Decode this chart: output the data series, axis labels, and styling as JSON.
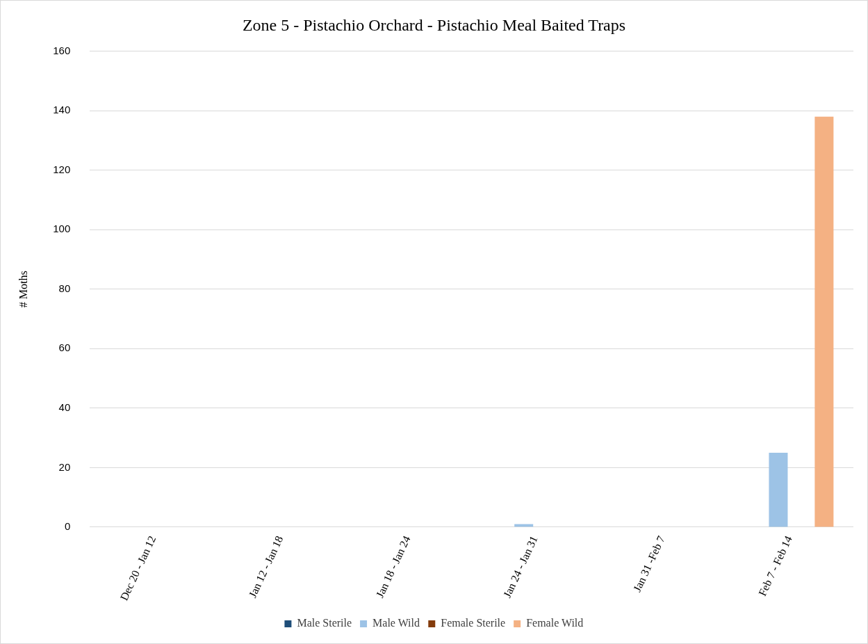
{
  "chart_data": {
    "type": "bar",
    "title": "Zone 5 - Pistachio Orchard - Pistachio Meal Baited Traps",
    "ylabel": "# Moths",
    "categories": [
      "Dec 20 - Jan 12",
      "Jan 12 - Jan 18",
      "Jan 18 - Jan 24",
      "Jan 24 - Jan 31",
      "Jan 31 -Feb 7",
      "Feb 7 - Feb 14"
    ],
    "series": [
      {
        "name": "Male Sterile",
        "color": "#1f4e79",
        "values": [
          0,
          0,
          0,
          0,
          0,
          0
        ]
      },
      {
        "name": "Male Wild",
        "color": "#9dc3e6",
        "values": [
          0,
          0,
          0,
          1,
          0,
          25
        ]
      },
      {
        "name": "Female Sterile",
        "color": "#843c0c",
        "values": [
          0,
          0,
          0,
          0,
          0,
          0
        ]
      },
      {
        "name": "Female Wild",
        "color": "#f4b183",
        "values": [
          0,
          0,
          0,
          0,
          0,
          138
        ]
      }
    ],
    "ylim": [
      0,
      160
    ],
    "yticks": [
      0,
      20,
      40,
      60,
      80,
      100,
      120,
      140,
      160
    ],
    "grid": "y",
    "legend": "bottom"
  }
}
